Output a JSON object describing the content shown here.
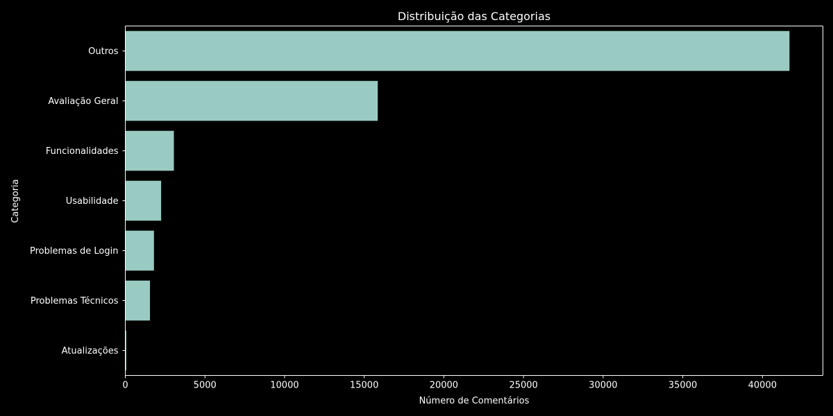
{
  "chart_data": {
    "type": "bar",
    "orientation": "horizontal",
    "title": "Distribuição das Categorias",
    "xlabel": "Número de Comentários",
    "ylabel": "Categoria",
    "categories": [
      "Outros",
      "Avaliação Geral",
      "Funcionalidades",
      "Usabilidade",
      "Problemas de Login",
      "Problemas Técnicos",
      "Atualizações"
    ],
    "values": [
      41700,
      15850,
      3050,
      2250,
      1800,
      1550,
      60
    ],
    "xlim": [
      0,
      43800
    ],
    "xticks": [
      0,
      5000,
      10000,
      15000,
      20000,
      25000,
      30000,
      35000,
      40000
    ],
    "xtick_labels": [
      "0",
      "5000",
      "10000",
      "15000",
      "20000",
      "25000",
      "30000",
      "35000",
      "40000"
    ],
    "grid": false,
    "bar_color": "#9acbc2",
    "background": "#000000",
    "text_color": "#ffffff"
  }
}
